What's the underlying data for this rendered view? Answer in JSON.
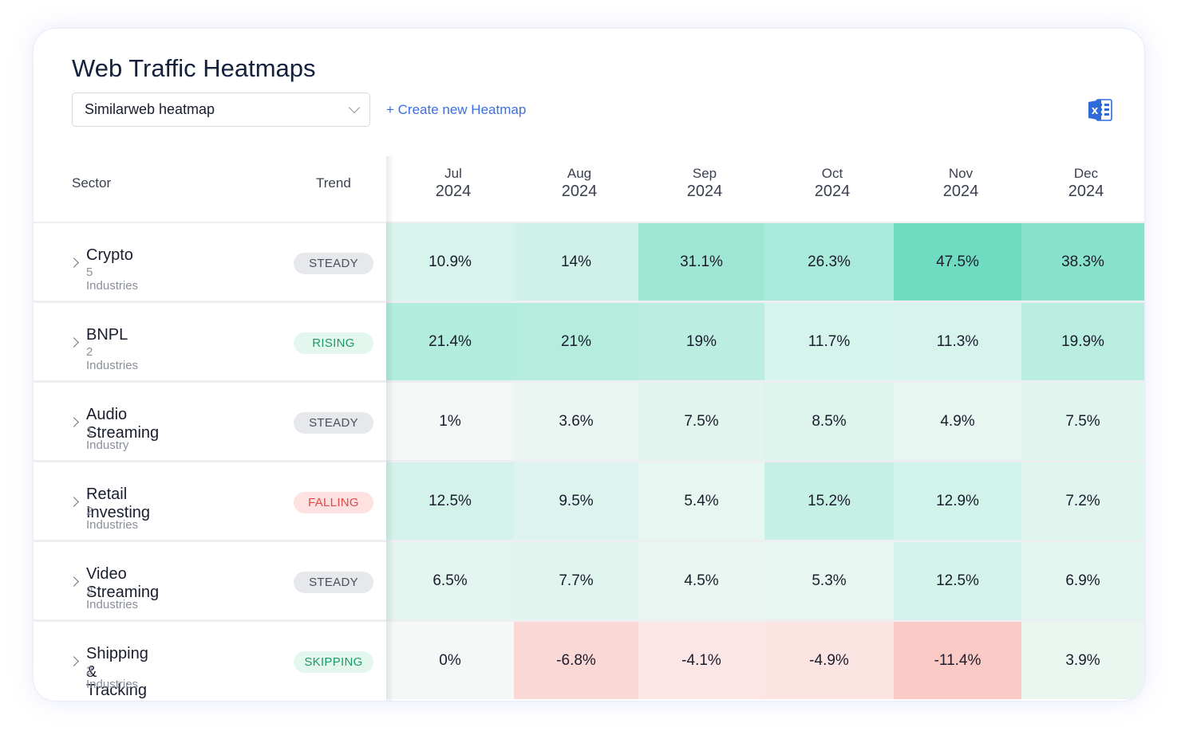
{
  "title": "Web Traffic Heatmaps",
  "heatmap_select": {
    "value": "Similarweb heatmap"
  },
  "create_link": "+ Create new Heatmap",
  "export_icon": "excel-icon",
  "columns": {
    "sector": "Sector",
    "trend": "Trend"
  },
  "months": [
    {
      "month": "Jul",
      "year": "2024"
    },
    {
      "month": "Aug",
      "year": "2024"
    },
    {
      "month": "Sep",
      "year": "2024"
    },
    {
      "month": "Oct",
      "year": "2024"
    },
    {
      "month": "Nov",
      "year": "2024"
    },
    {
      "month": "Dec",
      "year": "2024"
    }
  ],
  "trend_colors": {
    "STEADY": {
      "bg": "#e6e8ec",
      "fg": "#4a4f5c"
    },
    "RISING": {
      "bg": "#e3f7ef",
      "fg": "#1f9a66"
    },
    "FALLING": {
      "bg": "#fde2e1",
      "fg": "#e04848"
    },
    "SKIPPING": {
      "bg": "#e3f7ef",
      "fg": "#1f9a66"
    }
  },
  "rows": [
    {
      "name": "Crypto",
      "sub": "5 Industries",
      "trend": "STEADY",
      "values": [
        "10.9%",
        "14%",
        "31.1%",
        "26.3%",
        "47.5%",
        "38.3%"
      ],
      "colors": [
        "#d6f4ec",
        "#cff1e7",
        "#9fe7d2",
        "#aaeadb",
        "#6fdcc0",
        "#89e2ca"
      ]
    },
    {
      "name": "BNPL",
      "sub": "2 Industries",
      "trend": "RISING",
      "values": [
        "21.4%",
        "21%",
        "19%",
        "11.7%",
        "11.3%",
        "19.9%"
      ],
      "colors": [
        "#b2ecdc",
        "#b4ecdd",
        "#bbeee0",
        "#d5f4ec",
        "#d7f4ec",
        "#b8eddf"
      ]
    },
    {
      "name": "Audio Streaming",
      "sub": "1 Industry",
      "trend": "STEADY",
      "values": [
        "1%",
        "3.6%",
        "7.5%",
        "8.5%",
        "4.9%",
        "7.5%"
      ],
      "colors": [
        "#f3f8f6",
        "#ebf6f2",
        "#e0f5ee",
        "#dcf4ec",
        "#e7f6f1",
        "#e0f5ee"
      ]
    },
    {
      "name": "Retail Investing",
      "sub": "2 Industries",
      "trend": "FALLING",
      "values": [
        "12.5%",
        "9.5%",
        "5.4%",
        "15.2%",
        "12.9%",
        "7.2%"
      ],
      "colors": [
        "#d3f3ea",
        "#dcf4ed",
        "#e8f6f2",
        "#c6f0e3",
        "#d1f3e9",
        "#e1f5ef"
      ]
    },
    {
      "name": "Video Streaming",
      "sub": "2 Industries",
      "trend": "STEADY",
      "values": [
        "6.5%",
        "7.7%",
        "4.5%",
        "5.3%",
        "12.5%",
        "6.9%"
      ],
      "colors": [
        "#e3f5ef",
        "#e0f5ee",
        "#e9f6f2",
        "#e7f6f1",
        "#d3f3ea",
        "#e2f5ef"
      ]
    },
    {
      "name": "Shipping & Tracking",
      "sub": "2 Industries",
      "trend": "SKIPPING",
      "values": [
        "0%",
        "-6.8%",
        "-4.1%",
        "-4.9%",
        "-11.4%",
        "3.9%"
      ],
      "colors": [
        "#f5f8f7",
        "#fad8d6",
        "#fbe6e5",
        "#fbe4e2",
        "#fccac6",
        "#ebf6f1"
      ]
    }
  ]
}
